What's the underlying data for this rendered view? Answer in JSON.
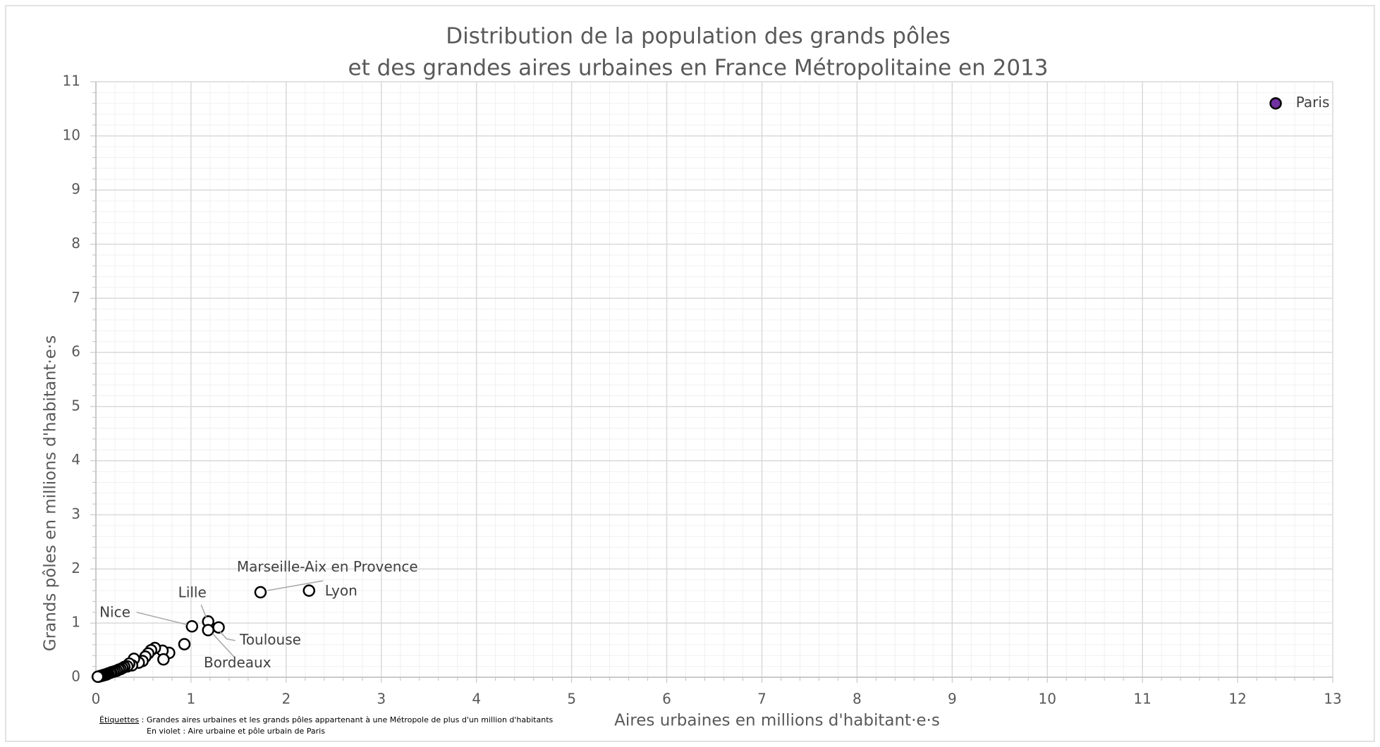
{
  "chart_data": {
    "type": "scatter",
    "title": [
      "Distribution de la population des grands pôles",
      "et des grandes aires urbaines en France Métropolitaine en 2013"
    ],
    "xlabel": "Aires urbaines en millions d'habitant·e·s",
    "ylabel": "Grands pôles en millions d'habitant·e·s",
    "xlim": [
      0,
      13
    ],
    "ylim": [
      0,
      11
    ],
    "xticks": [
      0,
      1,
      2,
      3,
      4,
      5,
      6,
      7,
      8,
      9,
      10,
      11,
      12,
      13
    ],
    "yticks": [
      0,
      1,
      2,
      3,
      4,
      5,
      6,
      7,
      8,
      9,
      10,
      11
    ],
    "grid": true,
    "minor_divisions": 5,
    "series": [
      {
        "color": "#ffffff",
        "edge_color": "#000000",
        "x": [
          1.73,
          2.24,
          1.18,
          1.01,
          1.29,
          1.18,
          0.93,
          0.77,
          0.7,
          0.71,
          0.62,
          0.58,
          0.55,
          0.52,
          0.49,
          0.45,
          0.4,
          0.38,
          0.35,
          0.33,
          0.3,
          0.28,
          0.26,
          0.24,
          0.22,
          0.2,
          0.18,
          0.16,
          0.15,
          0.13,
          0.12,
          0.11,
          0.1,
          0.09,
          0.08,
          0.07,
          0.06,
          0.05,
          0.04,
          0.03,
          0.02
        ],
        "values": [
          1.57,
          1.6,
          1.03,
          0.94,
          0.92,
          0.87,
          0.61,
          0.45,
          0.49,
          0.33,
          0.54,
          0.5,
          0.44,
          0.38,
          0.3,
          0.27,
          0.34,
          0.22,
          0.25,
          0.2,
          0.19,
          0.17,
          0.15,
          0.14,
          0.12,
          0.11,
          0.1,
          0.09,
          0.08,
          0.07,
          0.06,
          0.05,
          0.05,
          0.04,
          0.04,
          0.03,
          0.03,
          0.02,
          0.02,
          0.01,
          0.01
        ],
        "labels": [
          "Marseille-Aix en Provence",
          "Lyon",
          "Lille",
          "Nice",
          "Toulouse",
          "Bordeaux"
        ]
      },
      {
        "color": "#7030a0",
        "edge_color": "#000000",
        "x": [
          12.4
        ],
        "values": [
          10.6
        ],
        "labels": [
          "Paris"
        ]
      }
    ],
    "footnote": {
      "heading": "Étiquettes",
      "separator": " :",
      "lines": [
        "Grandes aires urbaines et les grands pôles appartenant à une Métropole de plus d'un million d'habitants",
        "En violet : Aire urbaine et pôle urbain de Paris"
      ]
    }
  }
}
